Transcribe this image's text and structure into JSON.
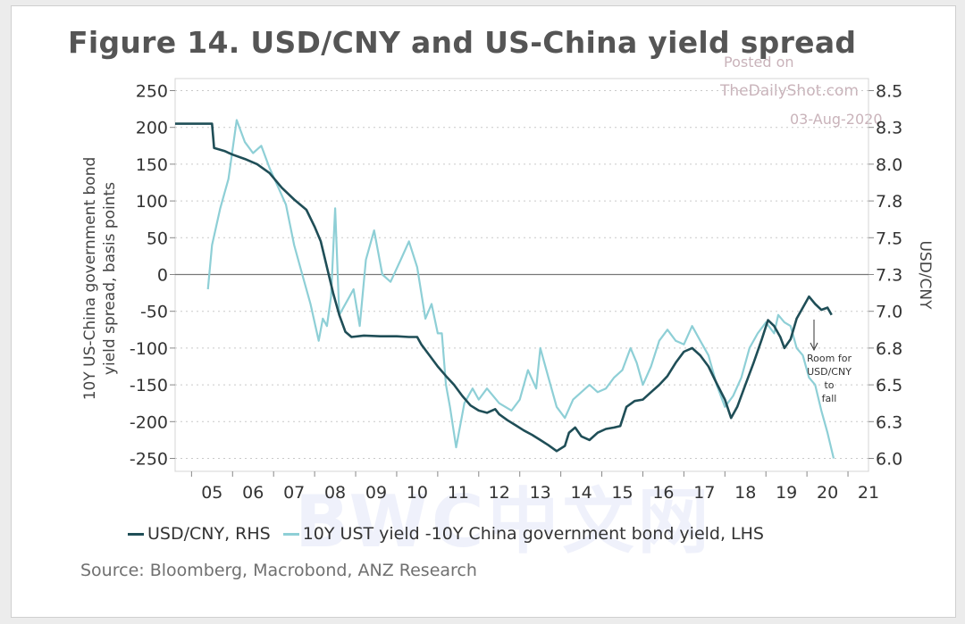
{
  "figure": {
    "title": "Figure 14. USD/CNY and US-China yield spread",
    "source": "Source: Bloomberg, Macrobond, ANZ Research"
  },
  "watermark": {
    "posted": "Posted on",
    "site": "TheDailyShot.com",
    "date": "03-Aug-2020",
    "overlay": "BWC中文网"
  },
  "chart_data": {
    "type": "line",
    "x_ticks": [
      "05",
      "06",
      "07",
      "08",
      "09",
      "10",
      "11",
      "12",
      "13",
      "14",
      "15",
      "16",
      "17",
      "18",
      "19",
      "20",
      "21"
    ],
    "xlim": [
      2004.6,
      2021.5
    ],
    "ylabel_left": "10Y US-China government bond yield spread, basis points",
    "ylabel_right": "USD/CNY",
    "ylim_left": [
      -260,
      260
    ],
    "left_ticks": [
      250,
      200,
      150,
      100,
      50,
      0,
      -50,
      -100,
      -150,
      -200,
      -250
    ],
    "right_ticks": [
      {
        "label": "8.5",
        "at": 250
      },
      {
        "label": "8.3",
        "at": 200
      },
      {
        "label": "8.0",
        "at": 150
      },
      {
        "label": "7.8",
        "at": 100
      },
      {
        "label": "7.5",
        "at": 50
      },
      {
        "label": "7.3",
        "at": 0
      },
      {
        "label": "7.0",
        "at": -50
      },
      {
        "label": "6.8",
        "at": -100
      },
      {
        "label": "6.5",
        "at": -150
      },
      {
        "label": "6.3",
        "at": -200
      },
      {
        "label": "6.0",
        "at": -250
      }
    ],
    "zero_line": 0,
    "series": [
      {
        "name": "USD/CNY, RHS",
        "legend": "USD/CNY, RHS",
        "color": "#1f4e57",
        "axis": "right",
        "points": [
          [
            2004.6,
            205
          ],
          [
            2005.5,
            205
          ],
          [
            2005.55,
            172
          ],
          [
            2005.8,
            168
          ],
          [
            2006.0,
            163
          ],
          [
            2006.3,
            157
          ],
          [
            2006.6,
            150
          ],
          [
            2006.9,
            138
          ],
          [
            2007.2,
            118
          ],
          [
            2007.5,
            102
          ],
          [
            2007.8,
            88
          ],
          [
            2008.0,
            65
          ],
          [
            2008.15,
            45
          ],
          [
            2008.3,
            10
          ],
          [
            2008.45,
            -25
          ],
          [
            2008.6,
            -55
          ],
          [
            2008.75,
            -78
          ],
          [
            2008.9,
            -85
          ],
          [
            2009.2,
            -83
          ],
          [
            2009.6,
            -84
          ],
          [
            2010.0,
            -84
          ],
          [
            2010.3,
            -85
          ],
          [
            2010.5,
            -85
          ],
          [
            2010.6,
            -95
          ],
          [
            2010.8,
            -110
          ],
          [
            2011.0,
            -125
          ],
          [
            2011.2,
            -138
          ],
          [
            2011.4,
            -150
          ],
          [
            2011.6,
            -165
          ],
          [
            2011.8,
            -178
          ],
          [
            2012.0,
            -185
          ],
          [
            2012.2,
            -188
          ],
          [
            2012.4,
            -183
          ],
          [
            2012.5,
            -190
          ],
          [
            2012.7,
            -198
          ],
          [
            2012.9,
            -205
          ],
          [
            2013.1,
            -212
          ],
          [
            2013.3,
            -218
          ],
          [
            2013.5,
            -225
          ],
          [
            2013.7,
            -232
          ],
          [
            2013.9,
            -240
          ],
          [
            2014.1,
            -233
          ],
          [
            2014.2,
            -215
          ],
          [
            2014.35,
            -208
          ],
          [
            2014.5,
            -220
          ],
          [
            2014.7,
            -225
          ],
          [
            2014.9,
            -215
          ],
          [
            2015.1,
            -210
          ],
          [
            2015.3,
            -208
          ],
          [
            2015.45,
            -206
          ],
          [
            2015.6,
            -180
          ],
          [
            2015.8,
            -172
          ],
          [
            2016.0,
            -170
          ],
          [
            2016.2,
            -160
          ],
          [
            2016.4,
            -150
          ],
          [
            2016.6,
            -138
          ],
          [
            2016.8,
            -120
          ],
          [
            2017.0,
            -105
          ],
          [
            2017.2,
            -100
          ],
          [
            2017.4,
            -110
          ],
          [
            2017.6,
            -125
          ],
          [
            2017.8,
            -148
          ],
          [
            2018.0,
            -170
          ],
          [
            2018.15,
            -195
          ],
          [
            2018.3,
            -180
          ],
          [
            2018.5,
            -150
          ],
          [
            2018.7,
            -120
          ],
          [
            2018.9,
            -88
          ],
          [
            2019.05,
            -62
          ],
          [
            2019.2,
            -70
          ],
          [
            2019.35,
            -85
          ],
          [
            2019.45,
            -100
          ],
          [
            2019.6,
            -88
          ],
          [
            2019.75,
            -60
          ],
          [
            2019.9,
            -45
          ],
          [
            2020.05,
            -30
          ],
          [
            2020.2,
            -40
          ],
          [
            2020.35,
            -48
          ],
          [
            2020.5,
            -45
          ],
          [
            2020.6,
            -55
          ]
        ]
      },
      {
        "name": "10Y UST yield -10Y China government bond yield, LHS",
        "legend": "10Y UST yield -10Y China government bond yield, LHS",
        "color": "#8ecfd6",
        "axis": "left",
        "points": [
          [
            2005.4,
            -20
          ],
          [
            2005.5,
            40
          ],
          [
            2005.7,
            90
          ],
          [
            2005.9,
            130
          ],
          [
            2006.1,
            210
          ],
          [
            2006.3,
            180
          ],
          [
            2006.5,
            165
          ],
          [
            2006.7,
            175
          ],
          [
            2006.9,
            145
          ],
          [
            2007.1,
            120
          ],
          [
            2007.3,
            95
          ],
          [
            2007.5,
            40
          ],
          [
            2007.7,
            0
          ],
          [
            2007.9,
            -40
          ],
          [
            2008.1,
            -90
          ],
          [
            2008.2,
            -60
          ],
          [
            2008.3,
            -70
          ],
          [
            2008.4,
            -30
          ],
          [
            2008.5,
            90
          ],
          [
            2008.6,
            -55
          ],
          [
            2008.8,
            -35
          ],
          [
            2008.95,
            -20
          ],
          [
            2009.1,
            -70
          ],
          [
            2009.25,
            20
          ],
          [
            2009.45,
            60
          ],
          [
            2009.65,
            0
          ],
          [
            2009.85,
            -10
          ],
          [
            2010.1,
            20
          ],
          [
            2010.3,
            45
          ],
          [
            2010.5,
            10
          ],
          [
            2010.7,
            -60
          ],
          [
            2010.85,
            -40
          ],
          [
            2011.0,
            -80
          ],
          [
            2011.1,
            -80
          ],
          [
            2011.2,
            -150
          ],
          [
            2011.3,
            -180
          ],
          [
            2011.45,
            -235
          ],
          [
            2011.65,
            -175
          ],
          [
            2011.85,
            -155
          ],
          [
            2012.0,
            -170
          ],
          [
            2012.2,
            -155
          ],
          [
            2012.5,
            -175
          ],
          [
            2012.8,
            -185
          ],
          [
            2013.0,
            -170
          ],
          [
            2013.2,
            -130
          ],
          [
            2013.4,
            -155
          ],
          [
            2013.5,
            -100
          ],
          [
            2013.7,
            -140
          ],
          [
            2013.9,
            -180
          ],
          [
            2014.1,
            -195
          ],
          [
            2014.3,
            -170
          ],
          [
            2014.5,
            -160
          ],
          [
            2014.7,
            -150
          ],
          [
            2014.9,
            -160
          ],
          [
            2015.1,
            -155
          ],
          [
            2015.3,
            -140
          ],
          [
            2015.5,
            -130
          ],
          [
            2015.7,
            -100
          ],
          [
            2015.85,
            -120
          ],
          [
            2016.0,
            -150
          ],
          [
            2016.2,
            -125
          ],
          [
            2016.4,
            -90
          ],
          [
            2016.6,
            -75
          ],
          [
            2016.8,
            -90
          ],
          [
            2017.0,
            -95
          ],
          [
            2017.2,
            -70
          ],
          [
            2017.4,
            -90
          ],
          [
            2017.6,
            -110
          ],
          [
            2017.8,
            -150
          ],
          [
            2018.0,
            -180
          ],
          [
            2018.2,
            -165
          ],
          [
            2018.4,
            -140
          ],
          [
            2018.6,
            -100
          ],
          [
            2018.8,
            -80
          ],
          [
            2019.0,
            -65
          ],
          [
            2019.2,
            -80
          ],
          [
            2019.3,
            -55
          ],
          [
            2019.45,
            -65
          ],
          [
            2019.6,
            -70
          ],
          [
            2019.75,
            -100
          ],
          [
            2019.9,
            -110
          ],
          [
            2020.05,
            -140
          ],
          [
            2020.2,
            -150
          ],
          [
            2020.35,
            -185
          ],
          [
            2020.5,
            -215
          ],
          [
            2020.65,
            -250
          ]
        ]
      }
    ],
    "annotation": {
      "lines": [
        "Room for",
        "USD/CNY",
        "to",
        "fall"
      ]
    }
  }
}
